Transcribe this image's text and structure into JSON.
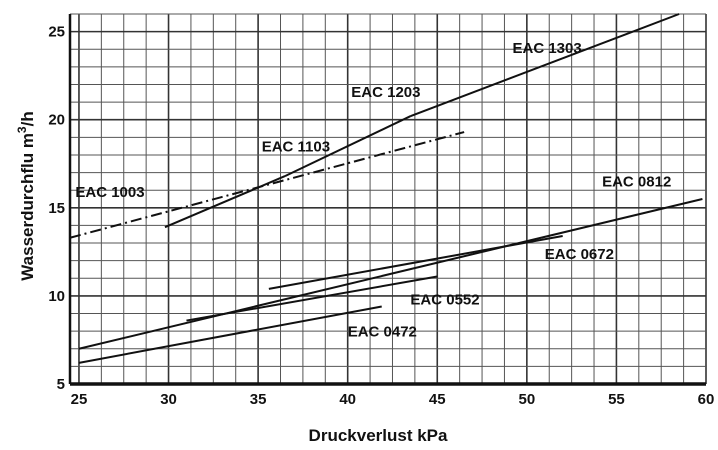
{
  "chart_data": {
    "type": "line",
    "title": "",
    "xlabel": "Druckverlust kPa",
    "ylabel_main": "Wasserdurchflu m",
    "ylabel_sup": "3",
    "ylabel_tail": "/h",
    "xlim": [
      24.5,
      60
    ],
    "ylim": [
      5,
      26
    ],
    "grid": true,
    "minor_step_x": 1.25,
    "minor_step_y": 1,
    "x_ticks": [
      "25",
      "30",
      "35",
      "40",
      "45",
      "50",
      "55",
      "60"
    ],
    "y_ticks": [
      "5",
      "10",
      "15",
      "20",
      "25"
    ],
    "series": [
      {
        "name": "EAC 1003",
        "style": "dashdot",
        "x": [
          24.5,
          46.5
        ],
        "y": [
          13.3,
          19.3
        ],
        "label_at": [
          24.8,
          15.6
        ]
      },
      {
        "name": "EAC 1103",
        "style": "solid",
        "x": [
          29.8,
          36.5
        ],
        "y": [
          13.9,
          16.8
        ],
        "label_at": [
          35.2,
          18.2
        ]
      },
      {
        "name": "EAC 1203",
        "style": "solid",
        "x": [
          36.5,
          43.5
        ],
        "y": [
          16.8,
          20.2
        ],
        "label_at": [
          40.2,
          21.3
        ]
      },
      {
        "name": "EAC 1303",
        "style": "solid",
        "x": [
          43.5,
          58.5
        ],
        "y": [
          20.2,
          26.0
        ],
        "label_at": [
          49.2,
          23.8
        ]
      },
      {
        "name": "EAC 0812",
        "style": "solid",
        "x": [
          25.0,
          59.8
        ],
        "y": [
          7.0,
          15.5
        ],
        "label_at": [
          54.2,
          16.2
        ]
      },
      {
        "name": "EAC 0672",
        "style": "solid",
        "x": [
          35.6,
          52.0
        ],
        "y": [
          10.4,
          13.4
        ],
        "label_at": [
          51.0,
          12.1
        ]
      },
      {
        "name": "EAC 0552",
        "style": "solid",
        "x": [
          31.0,
          45.0
        ],
        "y": [
          8.6,
          11.1
        ],
        "label_at": [
          43.5,
          9.5
        ]
      },
      {
        "name": "EAC 0472",
        "style": "solid",
        "x": [
          25.0,
          41.9
        ],
        "y": [
          6.2,
          9.4
        ],
        "label_at": [
          40.0,
          7.7
        ]
      }
    ]
  }
}
